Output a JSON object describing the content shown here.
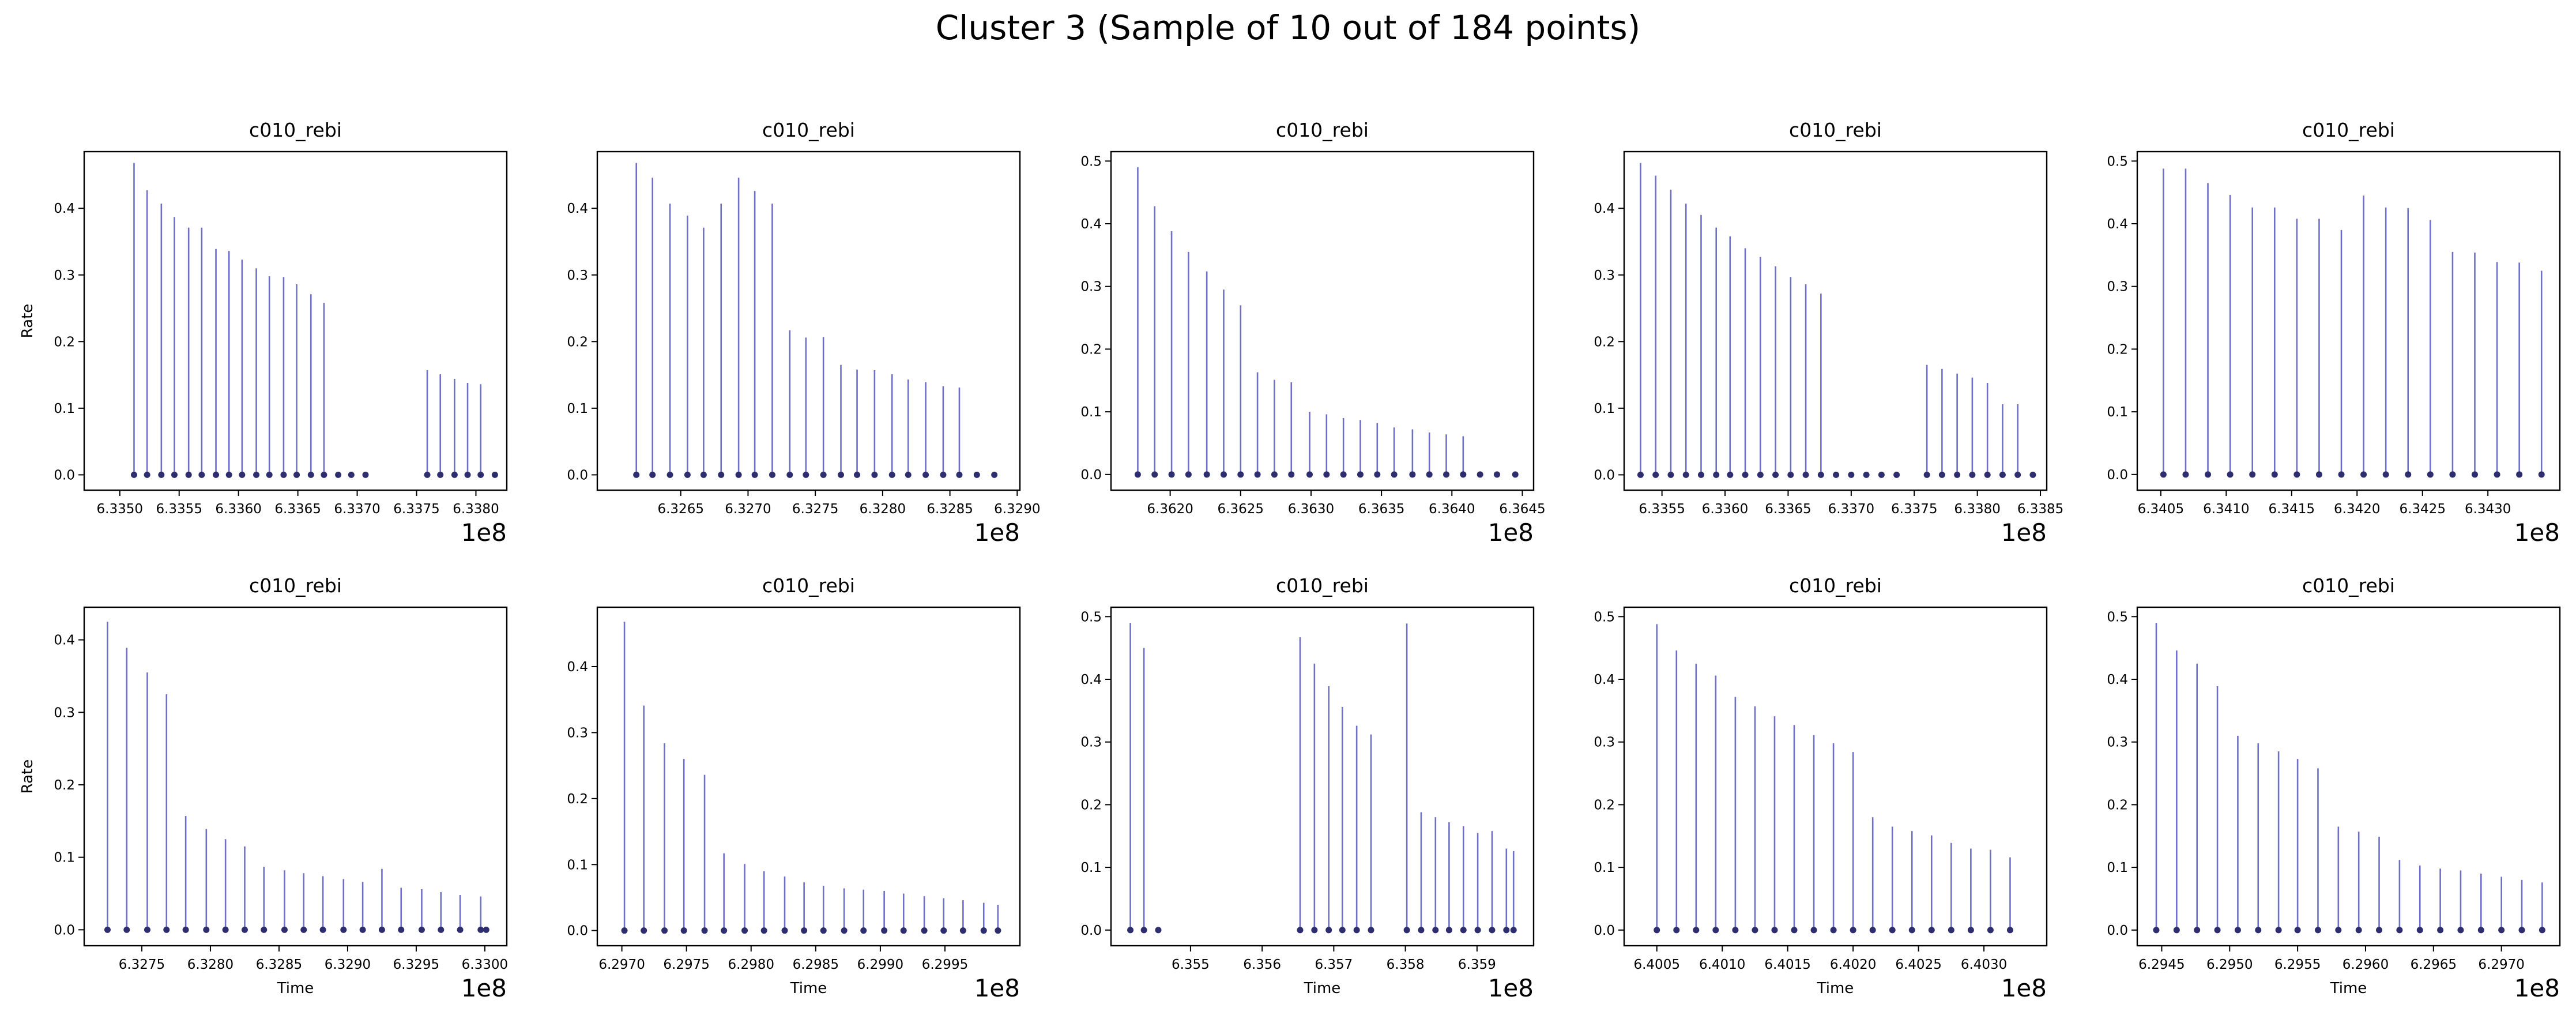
{
  "figure": {
    "title": "Cluster 3 (Sample of 10 out of 184 points)"
  },
  "style": {
    "stem_color": "#6f6fc7",
    "marker_color": "#2e2e6e",
    "axis_color": "#000000",
    "background": "#ffffff"
  },
  "chart_data": [
    {
      "type": "stem",
      "title": "c010_rebi",
      "ylabel": "Rate",
      "xlabel": "",
      "offset_label": "1e8",
      "xlim": [
        6.3347,
        6.33826
      ],
      "ylim": [
        -0.023,
        0.485
      ],
      "xticks": [
        6.335,
        6.3355,
        6.336,
        6.3365,
        6.337,
        6.3375,
        6.338
      ],
      "xtick_labels": [
        "6.3350",
        "6.3355",
        "6.3360",
        "6.3365",
        "6.3370",
        "6.3375",
        "6.3380"
      ],
      "yticks": [
        0.0,
        0.1,
        0.2,
        0.3,
        0.4
      ],
      "ytick_labels": [
        "0.0",
        "0.1",
        "0.2",
        "0.3",
        "0.4"
      ],
      "x": [
        6.33512,
        6.33523,
        6.33535,
        6.33546,
        6.33558,
        6.33569,
        6.33581,
        6.33592,
        6.33603,
        6.33615,
        6.33626,
        6.33638,
        6.33649,
        6.33661,
        6.33672,
        6.33684,
        6.33695,
        6.33707,
        6.33759,
        6.3377,
        6.33782,
        6.33793,
        6.33804,
        6.33816
      ],
      "y": [
        0.468,
        0.427,
        0.407,
        0.387,
        0.371,
        0.371,
        0.339,
        0.336,
        0.323,
        0.31,
        0.298,
        0.297,
        0.286,
        0.271,
        0.258,
        0.0,
        0.0,
        0.0,
        0.157,
        0.151,
        0.144,
        0.138,
        0.136,
        0.0
      ]
    },
    {
      "type": "stem",
      "title": "c010_rebi",
      "ylabel": "",
      "xlabel": "",
      "offset_label": "1e8",
      "xlim": [
        6.32588,
        6.32902
      ],
      "ylim": [
        -0.023,
        0.485
      ],
      "xticks": [
        6.3265,
        6.327,
        6.3275,
        6.328,
        6.3285,
        6.329
      ],
      "xtick_labels": [
        "6.3265",
        "6.3270",
        "6.3275",
        "6.3280",
        "6.3285",
        "6.3290"
      ],
      "yticks": [
        0.0,
        0.1,
        0.2,
        0.3,
        0.4
      ],
      "ytick_labels": [
        "0.0",
        "0.1",
        "0.2",
        "0.3",
        "0.4"
      ],
      "x": [
        6.32617,
        6.32629,
        6.32642,
        6.32655,
        6.32667,
        6.3268,
        6.32693,
        6.32705,
        6.32718,
        6.32731,
        6.32743,
        6.32756,
        6.32769,
        6.32781,
        6.32794,
        6.32807,
        6.32819,
        6.32832,
        6.32845,
        6.32857,
        6.3287,
        6.32883
      ],
      "y": [
        0.468,
        0.446,
        0.407,
        0.389,
        0.371,
        0.407,
        0.446,
        0.426,
        0.407,
        0.217,
        0.206,
        0.207,
        0.165,
        0.158,
        0.157,
        0.151,
        0.143,
        0.139,
        0.133,
        0.131,
        0.0,
        0.0
      ]
    },
    {
      "type": "stem",
      "title": "c010_rebi",
      "ylabel": "",
      "xlabel": "",
      "offset_label": "1e8",
      "xlim": [
        6.36158,
        6.36458
      ],
      "ylim": [
        -0.025,
        0.515
      ],
      "xticks": [
        6.362,
        6.3625,
        6.363,
        6.3635,
        6.364,
        6.3645
      ],
      "xtick_labels": [
        "6.3620",
        "6.3625",
        "6.3630",
        "6.3635",
        "6.3640",
        "6.3645"
      ],
      "yticks": [
        0.0,
        0.1,
        0.2,
        0.3,
        0.4,
        0.5
      ],
      "ytick_labels": [
        "0.0",
        "0.1",
        "0.2",
        "0.3",
        "0.4",
        "0.5"
      ],
      "x": [
        6.36177,
        6.36189,
        6.36201,
        6.36213,
        6.36226,
        6.36238,
        6.3625,
        6.36262,
        6.36274,
        6.36286,
        6.36299,
        6.36311,
        6.36323,
        6.36335,
        6.36347,
        6.36359,
        6.36372,
        6.36384,
        6.36396,
        6.36408,
        6.3642,
        6.36432,
        6.36445
      ],
      "y": [
        0.49,
        0.428,
        0.388,
        0.355,
        0.324,
        0.295,
        0.27,
        0.163,
        0.151,
        0.147,
        0.1,
        0.096,
        0.09,
        0.087,
        0.082,
        0.075,
        0.072,
        0.067,
        0.064,
        0.061,
        0.0,
        0.0,
        0.0
      ]
    },
    {
      "type": "stem",
      "title": "c010_rebi",
      "ylabel": "",
      "xlabel": "",
      "offset_label": "1e8",
      "xlim": [
        6.3352,
        6.33855
      ],
      "ylim": [
        -0.023,
        0.485
      ],
      "xticks": [
        6.3355,
        6.336,
        6.3365,
        6.337,
        6.3375,
        6.338,
        6.3385
      ],
      "xtick_labels": [
        "6.3355",
        "6.3360",
        "6.3365",
        "6.3370",
        "6.3375",
        "6.3380",
        "6.3385"
      ],
      "yticks": [
        0.0,
        0.1,
        0.2,
        0.3,
        0.4
      ],
      "ytick_labels": [
        "0.0",
        "0.1",
        "0.2",
        "0.3",
        "0.4"
      ],
      "x": [
        6.33533,
        6.33545,
        6.33557,
        6.33569,
        6.33581,
        6.33593,
        6.33604,
        6.33616,
        6.33628,
        6.3364,
        6.33652,
        6.33664,
        6.33676,
        6.33688,
        6.337,
        6.33712,
        6.33724,
        6.33736,
        6.3376,
        6.33772,
        6.33784,
        6.33796,
        6.33808,
        6.3382,
        6.33832,
        6.33844
      ],
      "y": [
        0.468,
        0.449,
        0.428,
        0.407,
        0.39,
        0.371,
        0.358,
        0.34,
        0.327,
        0.313,
        0.297,
        0.286,
        0.272,
        0.0,
        0.0,
        0.0,
        0.0,
        0.0,
        0.165,
        0.159,
        0.152,
        0.146,
        0.138,
        0.106,
        0.106,
        0.0
      ]
    },
    {
      "type": "stem",
      "title": "c010_rebi",
      "ylabel": "",
      "xlabel": "",
      "offset_label": "1e8",
      "xlim": [
        6.34032,
        6.34355
      ],
      "ylim": [
        -0.025,
        0.515
      ],
      "xticks": [
        6.3405,
        6.341,
        6.3415,
        6.342,
        6.3425,
        6.343
      ],
      "xtick_labels": [
        "6.3405",
        "6.3410",
        "6.3415",
        "6.3420",
        "6.3425",
        "6.3430"
      ],
      "yticks": [
        0.0,
        0.1,
        0.2,
        0.3,
        0.4,
        0.5
      ],
      "ytick_labels": [
        "0.0",
        "0.1",
        "0.2",
        "0.3",
        "0.4",
        "0.5"
      ],
      "x": [
        6.34052,
        6.34069,
        6.34086,
        6.34103,
        6.3412,
        6.34137,
        6.34154,
        6.34171,
        6.34188,
        6.34205,
        6.34222,
        6.34239,
        6.34256,
        6.34273,
        6.3429,
        6.34307,
        6.34324,
        6.34341
      ],
      "y": [
        0.488,
        0.488,
        0.465,
        0.446,
        0.426,
        0.426,
        0.408,
        0.408,
        0.39,
        0.445,
        0.426,
        0.425,
        0.406,
        0.355,
        0.354,
        0.339,
        0.338,
        0.325
      ]
    },
    {
      "type": "stem",
      "title": "c010_rebi",
      "ylabel": "Rate",
      "xlabel": "Time",
      "offset_label": "1e8",
      "xlim": [
        6.32708,
        6.33016
      ],
      "ylim": [
        -0.022,
        0.445
      ],
      "xticks": [
        6.3275,
        6.328,
        6.3285,
        6.329,
        6.3295,
        6.33
      ],
      "xtick_labels": [
        "6.3275",
        "6.3280",
        "6.3285",
        "6.3290",
        "6.3295",
        "6.3300"
      ],
      "yticks": [
        0.0,
        0.1,
        0.2,
        0.3,
        0.4
      ],
      "ytick_labels": [
        "0.0",
        "0.1",
        "0.2",
        "0.3",
        "0.4"
      ],
      "x": [
        6.32725,
        6.32739,
        6.32754,
        6.32768,
        6.32782,
        6.32797,
        6.32811,
        6.32825,
        6.32839,
        6.32854,
        6.32868,
        6.32882,
        6.32897,
        6.32911,
        6.32925,
        6.32939,
        6.32954,
        6.32968,
        6.32982,
        6.32997,
        6.33001
      ],
      "y": [
        0.425,
        0.389,
        0.355,
        0.325,
        0.157,
        0.139,
        0.125,
        0.115,
        0.087,
        0.082,
        0.078,
        0.074,
        0.07,
        0.066,
        0.084,
        0.058,
        0.056,
        0.052,
        0.048,
        0.046,
        0.0
      ]
    },
    {
      "type": "stem",
      "title": "c010_rebi",
      "ylabel": "",
      "xlabel": "Time",
      "offset_label": "1e8",
      "xlim": [
        6.29681,
        6.30008
      ],
      "ylim": [
        -0.023,
        0.49
      ],
      "xticks": [
        6.297,
        6.2975,
        6.298,
        6.2985,
        6.299,
        6.2995
      ],
      "xtick_labels": [
        "6.2970",
        "6.2975",
        "6.2980",
        "6.2985",
        "6.2990",
        "6.2995"
      ],
      "yticks": [
        0.0,
        0.1,
        0.2,
        0.3,
        0.4
      ],
      "ytick_labels": [
        "0.0",
        "0.1",
        "0.2",
        "0.3",
        "0.4"
      ],
      "x": [
        6.29702,
        6.29717,
        6.29733,
        6.29748,
        6.29764,
        6.29779,
        6.29795,
        6.2981,
        6.29826,
        6.29841,
        6.29856,
        6.29872,
        6.29887,
        6.29903,
        6.29918,
        6.29934,
        6.29949,
        6.29964,
        6.2998,
        6.29991
      ],
      "y": [
        0.468,
        0.341,
        0.284,
        0.26,
        0.236,
        0.117,
        0.101,
        0.09,
        0.082,
        0.073,
        0.068,
        0.064,
        0.062,
        0.06,
        0.056,
        0.052,
        0.049,
        0.046,
        0.042,
        0.039
      ]
    },
    {
      "type": "stem",
      "title": "c010_rebi",
      "ylabel": "",
      "xlabel": "Time",
      "offset_label": "1e8",
      "xlim": [
        6.35389,
        6.35979
      ],
      "ylim": [
        -0.025,
        0.515
      ],
      "xticks": [
        6.355,
        6.356,
        6.357,
        6.358,
        6.359
      ],
      "xtick_labels": [
        "6.355",
        "6.356",
        "6.357",
        "6.358",
        "6.359"
      ],
      "yticks": [
        0.0,
        0.1,
        0.2,
        0.3,
        0.4,
        0.5
      ],
      "ytick_labels": [
        "0.0",
        "0.1",
        "0.2",
        "0.3",
        "0.4",
        "0.5"
      ],
      "x": [
        6.35416,
        6.35435,
        6.35455,
        6.35653,
        6.35673,
        6.35693,
        6.35712,
        6.35732,
        6.35752,
        6.35802,
        6.35822,
        6.35842,
        6.35861,
        6.35881,
        6.35901,
        6.35921,
        6.35941,
        6.35951
      ],
      "y": [
        0.49,
        0.45,
        0.0,
        0.467,
        0.425,
        0.389,
        0.356,
        0.326,
        0.312,
        0.489,
        0.188,
        0.18,
        0.172,
        0.166,
        0.155,
        0.158,
        0.13,
        0.126
      ]
    },
    {
      "type": "stem",
      "title": "c010_rebi",
      "ylabel": "",
      "xlabel": "Time",
      "offset_label": "1e8",
      "xlim": [
        6.40025,
        6.40348
      ],
      "ylim": [
        -0.025,
        0.515
      ],
      "xticks": [
        6.4005,
        6.401,
        6.4015,
        6.402,
        6.4025,
        6.403
      ],
      "xtick_labels": [
        "6.4005",
        "6.4010",
        "6.4015",
        "6.4020",
        "6.4025",
        "6.4030"
      ],
      "yticks": [
        0.0,
        0.1,
        0.2,
        0.3,
        0.4,
        0.5
      ],
      "ytick_labels": [
        "0.0",
        "0.1",
        "0.2",
        "0.3",
        "0.4",
        "0.5"
      ],
      "x": [
        6.4005,
        6.40065,
        6.4008,
        6.40095,
        6.4011,
        6.40125,
        6.4014,
        6.40155,
        6.4017,
        6.40185,
        6.402,
        6.40215,
        6.4023,
        6.40245,
        6.4026,
        6.40275,
        6.4029,
        6.40305,
        6.4032
      ],
      "y": [
        0.488,
        0.446,
        0.425,
        0.406,
        0.372,
        0.357,
        0.341,
        0.327,
        0.311,
        0.298,
        0.284,
        0.18,
        0.165,
        0.158,
        0.151,
        0.139,
        0.13,
        0.128,
        0.116
      ]
    },
    {
      "type": "stem",
      "title": "c010_rebi",
      "ylabel": "",
      "xlabel": "Time",
      "offset_label": "1e8",
      "xlim": [
        6.29432,
        6.29743
      ],
      "ylim": [
        -0.025,
        0.515
      ],
      "xticks": [
        6.2945,
        6.295,
        6.2955,
        6.296,
        6.2965,
        6.297
      ],
      "xtick_labels": [
        "6.2945",
        "6.2950",
        "6.2955",
        "6.2960",
        "6.2965",
        "6.2970"
      ],
      "yticks": [
        0.0,
        0.1,
        0.2,
        0.3,
        0.4,
        0.5
      ],
      "ytick_labels": [
        "0.0",
        "0.1",
        "0.2",
        "0.3",
        "0.4",
        "0.5"
      ],
      "x": [
        6.29446,
        6.29461,
        6.29476,
        6.29491,
        6.29506,
        6.29521,
        6.29536,
        6.2955,
        6.29565,
        6.2958,
        6.29595,
        6.2961,
        6.29625,
        6.2964,
        6.29655,
        6.2967,
        6.29685,
        6.297,
        6.29715,
        6.2973
      ],
      "y": [
        0.49,
        0.446,
        0.425,
        0.389,
        0.31,
        0.298,
        0.285,
        0.273,
        0.258,
        0.165,
        0.157,
        0.149,
        0.112,
        0.103,
        0.098,
        0.095,
        0.09,
        0.085,
        0.08,
        0.076
      ]
    }
  ]
}
